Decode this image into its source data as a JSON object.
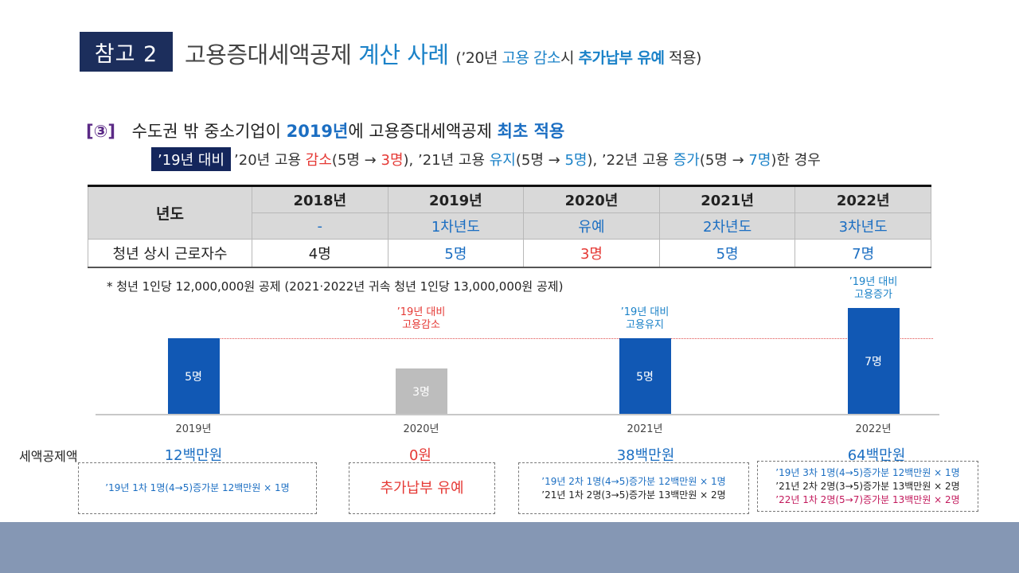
{
  "title": {
    "badge": "참고 2",
    "main": "고용증대세액공제",
    "highlight": "계산 사례",
    "paren_open": "(’20년",
    "paren_b1": "고용 감소",
    "paren_mid": "시",
    "paren_bold": "추가납부 유예",
    "paren_close": "적용)"
  },
  "case": {
    "num": "[③]",
    "text1": "수도권 밖 중소기업이",
    "hl1": "2019년",
    "text2": "에 고용증대세액공제",
    "hl2": "최초 적용"
  },
  "subline": {
    "box": "’19년 대비",
    "p1": "’20년 고용",
    "r1": "감소",
    "p2": "(5명 →",
    "r2": "3명",
    "p3": "), ’21년 고용",
    "b1": "유지",
    "p4": "(5명 →",
    "b2": "5명",
    "p5": "), ’22년 고용",
    "b3": "증가",
    "p6": "(5명 →",
    "b4": "7명",
    "p7": ")한 경우"
  },
  "table": {
    "row_header": "년도",
    "years": [
      "2018년",
      "2019년",
      "2020년",
      "2021년",
      "2022년"
    ],
    "phases": [
      "-",
      "1차년도",
      "유예",
      "2차년도",
      "3차년도"
    ],
    "worker_label": "청년 상시 근로자수",
    "workers": [
      "4명",
      "5명",
      "3명",
      "5명",
      "7명"
    ]
  },
  "note": "* 청년 1인당 12,000,000원 공제 (2021·2022년 귀속 청년 1인당 13,000,000원 공제)",
  "chart_data": {
    "type": "bar",
    "categories": [
      "2019년",
      "2020년",
      "2021년",
      "2022년"
    ],
    "values": [
      5,
      3,
      5,
      7
    ],
    "value_labels": [
      "5명",
      "3명",
      "5명",
      "7명"
    ],
    "reference_value": 5,
    "annotations": [
      {
        "category": "2020년",
        "line1": "’19년 대비",
        "line2": "고용감소",
        "color": "#e53935"
      },
      {
        "category": "2021년",
        "line1": "’19년 대비",
        "line2": "고용유지",
        "color": "#1b82c8"
      },
      {
        "category": "2022년",
        "line1": "’19년 대비",
        "line2": "고용증가",
        "color": "#1b82c8"
      }
    ],
    "colors": {
      "normal": "#1158b4",
      "reduced": "#bdbdbd"
    }
  },
  "credits": {
    "title": "세액공제액",
    "amounts": [
      "12백만원",
      "0원",
      "38백만원",
      "64백만원"
    ],
    "box1": "’19년  1차 1명(4→5)증가분 12백만원 × 1명",
    "box2": "추가납부 유예",
    "box3": [
      "’19년 2차 1명(4→5)증가분 12백만원 × 1명",
      "’21년 1차 2명(3→5)증가분 13백만원 × 2명"
    ],
    "box4": [
      "’19년 3차 1명(4→5)증가분 12백만원 × 1명",
      "’21년 2차 2명(3→5)증가분 13백만원 × 2명",
      "’22년 1차 2명(5→7)증가분 13백만원 × 2명"
    ]
  }
}
